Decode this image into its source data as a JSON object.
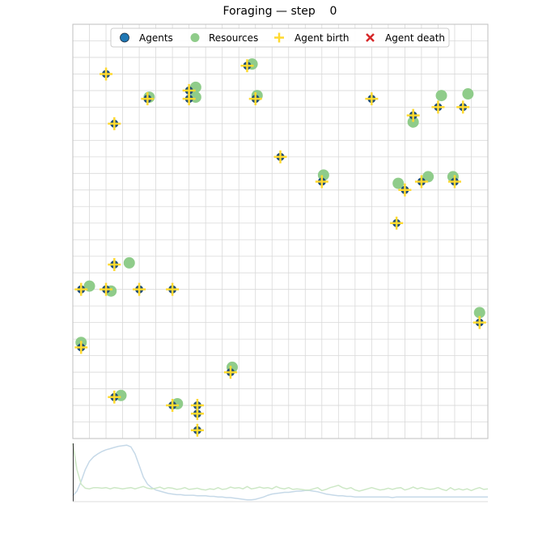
{
  "title": "Foraging — step    0",
  "colors": {
    "agent": "#1f4e79",
    "agent_legend": "#1f77b4",
    "resource": "#8fcc8a",
    "birth": "#ffd92f",
    "death": "#d62728",
    "grid": "#d9d9d9",
    "spine": "#bfbfbf",
    "line_blue": "#c6d9e8",
    "line_green": "#cde8c6"
  },
  "legend": {
    "placement": "top-center",
    "items": [
      {
        "label": "Agents",
        "marker": "circle",
        "color": "#1f77b4"
      },
      {
        "label": "Resources",
        "marker": "circle",
        "color": "#8fcc8a"
      },
      {
        "label": "Agent birth",
        "marker": "plus",
        "color": "#ffd92f"
      },
      {
        "label": "Agent death",
        "marker": "x",
        "color": "#d62728"
      }
    ]
  },
  "chart_data": [
    {
      "type": "scatter",
      "title": "Foraging — step    0",
      "xlim": [
        0,
        25
      ],
      "ylim": [
        0,
        25
      ],
      "grid": true,
      "series": [
        {
          "name": "Agents",
          "points": [
            [
              2,
              22
            ],
            [
              2.5,
              19
            ],
            [
              4.5,
              20.5
            ],
            [
              7,
              21
            ],
            [
              7,
              20.5
            ],
            [
              10.5,
              22.5
            ],
            [
              11,
              20.5
            ],
            [
              12.5,
              17
            ],
            [
              15,
              15.5
            ],
            [
              18,
              20.5
            ],
            [
              19.5,
              13
            ],
            [
              20,
              15
            ],
            [
              20.5,
              19.5
            ],
            [
              21,
              15.5
            ],
            [
              22,
              20
            ],
            [
              23,
              15.5
            ],
            [
              23.5,
              20
            ],
            [
              2.5,
              10.5
            ],
            [
              0.5,
              9
            ],
            [
              2,
              9
            ],
            [
              4,
              9
            ],
            [
              6,
              9
            ],
            [
              0.5,
              5.5
            ],
            [
              24.5,
              7
            ],
            [
              9.5,
              4
            ],
            [
              2.5,
              2.5
            ],
            [
              6,
              2
            ],
            [
              7.5,
              2
            ],
            [
              7.5,
              1.5
            ],
            [
              7.5,
              0.5
            ]
          ]
        },
        {
          "name": "Resources",
          "points": [
            [
              10.8,
              22.6
            ],
            [
              7.4,
              21.2
            ],
            [
              7.4,
              20.6
            ],
            [
              4.6,
              20.6
            ],
            [
              11.1,
              20.7
            ],
            [
              22.2,
              20.7
            ],
            [
              23.8,
              20.8
            ],
            [
              20.5,
              19.1
            ],
            [
              15.1,
              15.9
            ],
            [
              19.6,
              15.4
            ],
            [
              21.4,
              15.8
            ],
            [
              22.9,
              15.8
            ],
            [
              3.4,
              10.6
            ],
            [
              1,
              9.2
            ],
            [
              2.3,
              8.9
            ],
            [
              0.5,
              5.8
            ],
            [
              24.5,
              7.6
            ],
            [
              9.6,
              4.3
            ],
            [
              2.9,
              2.6
            ],
            [
              6.3,
              2.1
            ]
          ]
        },
        {
          "name": "Agent birth",
          "points": [
            [
              2,
              22
            ],
            [
              2.5,
              19
            ],
            [
              4.5,
              20.5
            ],
            [
              7,
              21
            ],
            [
              7,
              20.5
            ],
            [
              10.5,
              22.5
            ],
            [
              11,
              20.5
            ],
            [
              12.5,
              17
            ],
            [
              15,
              15.5
            ],
            [
              18,
              20.5
            ],
            [
              19.5,
              13
            ],
            [
              20,
              15
            ],
            [
              20.5,
              19.5
            ],
            [
              21,
              15.5
            ],
            [
              22,
              20
            ],
            [
              23,
              15.5
            ],
            [
              23.5,
              20
            ],
            [
              2.5,
              10.5
            ],
            [
              0.5,
              9
            ],
            [
              2,
              9
            ],
            [
              4,
              9
            ],
            [
              6,
              9
            ],
            [
              0.5,
              5.5
            ],
            [
              24.5,
              7
            ],
            [
              9.5,
              4
            ],
            [
              2.5,
              2.5
            ],
            [
              6,
              2
            ],
            [
              7.5,
              2
            ],
            [
              7.5,
              1.5
            ],
            [
              7.5,
              0.5
            ]
          ]
        },
        {
          "name": "Agent death",
          "points": []
        }
      ]
    },
    {
      "type": "line",
      "x": [
        0,
        2,
        4,
        6,
        8,
        10,
        12,
        14,
        16,
        18,
        20,
        22,
        24,
        26,
        28,
        30,
        32,
        34,
        36,
        38,
        40,
        42,
        44,
        46,
        48,
        50,
        52,
        54,
        56,
        58,
        60,
        62,
        64,
        66,
        68,
        70,
        72,
        74,
        76,
        78,
        80,
        82,
        84,
        86,
        88,
        90,
        92,
        94,
        96,
        98,
        100,
        102,
        104,
        106,
        108,
        110,
        112,
        114,
        116,
        118,
        120,
        122,
        124,
        126,
        128,
        130,
        132,
        134,
        136,
        138,
        140,
        142,
        144,
        146,
        148,
        150,
        152,
        154,
        156,
        158,
        160,
        162,
        164,
        166,
        168,
        170,
        172,
        174,
        176,
        178,
        180,
        182,
        184,
        186,
        188,
        190,
        192,
        194,
        196,
        198,
        200
      ],
      "ylim": [
        0,
        1
      ],
      "grid": false,
      "series": [
        {
          "values": [
            0.1,
            0.18,
            0.35,
            0.55,
            0.69,
            0.77,
            0.82,
            0.86,
            0.89,
            0.91,
            0.93,
            0.95,
            0.96,
            0.97,
            0.94,
            0.82,
            0.62,
            0.42,
            0.3,
            0.24,
            0.2,
            0.18,
            0.16,
            0.14,
            0.13,
            0.12,
            0.12,
            0.11,
            0.11,
            0.11,
            0.1,
            0.1,
            0.1,
            0.09,
            0.09,
            0.08,
            0.08,
            0.07,
            0.07,
            0.06,
            0.05,
            0.04,
            0.03,
            0.03,
            0.04,
            0.06,
            0.08,
            0.11,
            0.13,
            0.14,
            0.15,
            0.16,
            0.16,
            0.17,
            0.18,
            0.18,
            0.19,
            0.19,
            0.18,
            0.17,
            0.15,
            0.13,
            0.12,
            0.11,
            0.1,
            0.1,
            0.09,
            0.09,
            0.08,
            0.08,
            0.08,
            0.08,
            0.08,
            0.08,
            0.08,
            0.08,
            0.08,
            0.07,
            0.08,
            0.08,
            0.08,
            0.08,
            0.08,
            0.08,
            0.08,
            0.08,
            0.08,
            0.08,
            0.08,
            0.08,
            0.08,
            0.08,
            0.08,
            0.08,
            0.08,
            0.08,
            0.08,
            0.08,
            0.08,
            0.08,
            0.08
          ]
        },
        {
          "values": [
            1,
            0.55,
            0.3,
            0.23,
            0.22,
            0.24,
            0.24,
            0.23,
            0.24,
            0.22,
            0.24,
            0.23,
            0.22,
            0.23,
            0.24,
            0.22,
            0.24,
            0.26,
            0.23,
            0.22,
            0.23,
            0.25,
            0.22,
            0.24,
            0.23,
            0.21,
            0.22,
            0.24,
            0.21,
            0.22,
            0.23,
            0.21,
            0.2,
            0.22,
            0.21,
            0.24,
            0.21,
            0.22,
            0.25,
            0.23,
            0.24,
            0.22,
            0.26,
            0.22,
            0.23,
            0.25,
            0.23,
            0.24,
            0.22,
            0.26,
            0.23,
            0.22,
            0.24,
            0.21,
            0.22,
            0.21,
            0.2,
            0.2,
            0.22,
            0.24,
            0.19,
            0.21,
            0.24,
            0.26,
            0.28,
            0.24,
            0.22,
            0.24,
            0.2,
            0.18,
            0.2,
            0.22,
            0.24,
            0.22,
            0.2,
            0.21,
            0.23,
            0.21,
            0.23,
            0.24,
            0.2,
            0.22,
            0.25,
            0.22,
            0.24,
            0.22,
            0.21,
            0.22,
            0.24,
            0.21,
            0.19,
            0.24,
            0.2,
            0.22,
            0.2,
            0.22,
            0.19,
            0.22,
            0.24,
            0.21,
            0.22
          ]
        }
      ]
    }
  ]
}
